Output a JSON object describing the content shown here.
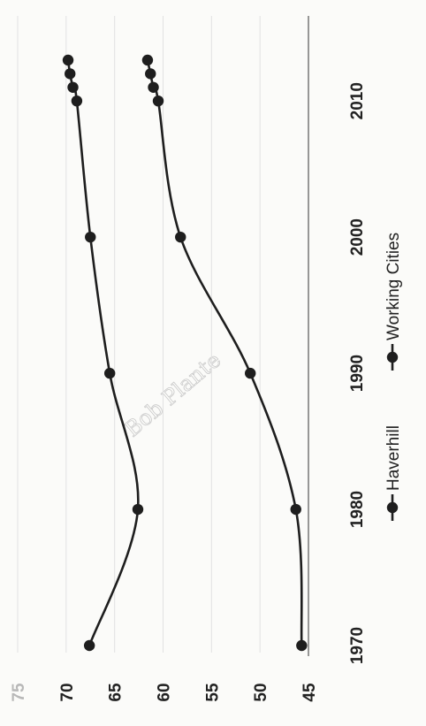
{
  "chart_data": {
    "type": "line",
    "x": [
      1970,
      1980,
      1990,
      2000,
      2010,
      2011,
      2012,
      2013
    ],
    "x_ticks": [
      "1970",
      "1980",
      "1990",
      "2000",
      "2010"
    ],
    "y_ticks": [
      "45",
      "50",
      "55",
      "60",
      "65",
      "70",
      "75"
    ],
    "ylim": [
      45,
      75
    ],
    "xlim": [
      1970,
      2013
    ],
    "series": [
      {
        "name": "Haverhill",
        "values": [
          67.6,
          62.6,
          65.5,
          67.5,
          68.9,
          69.3,
          69.6,
          69.8
        ]
      },
      {
        "name": "Working Cities",
        "values": [
          45.7,
          46.3,
          51.0,
          58.2,
          60.5,
          61.0,
          61.3,
          61.6
        ]
      }
    ],
    "grid": true,
    "legend": "bottom",
    "colors": {
      "line": "#1e1e1e",
      "grid": "#e2e2e2",
      "axis": "#555555"
    },
    "annotation": "Bob Plante"
  }
}
